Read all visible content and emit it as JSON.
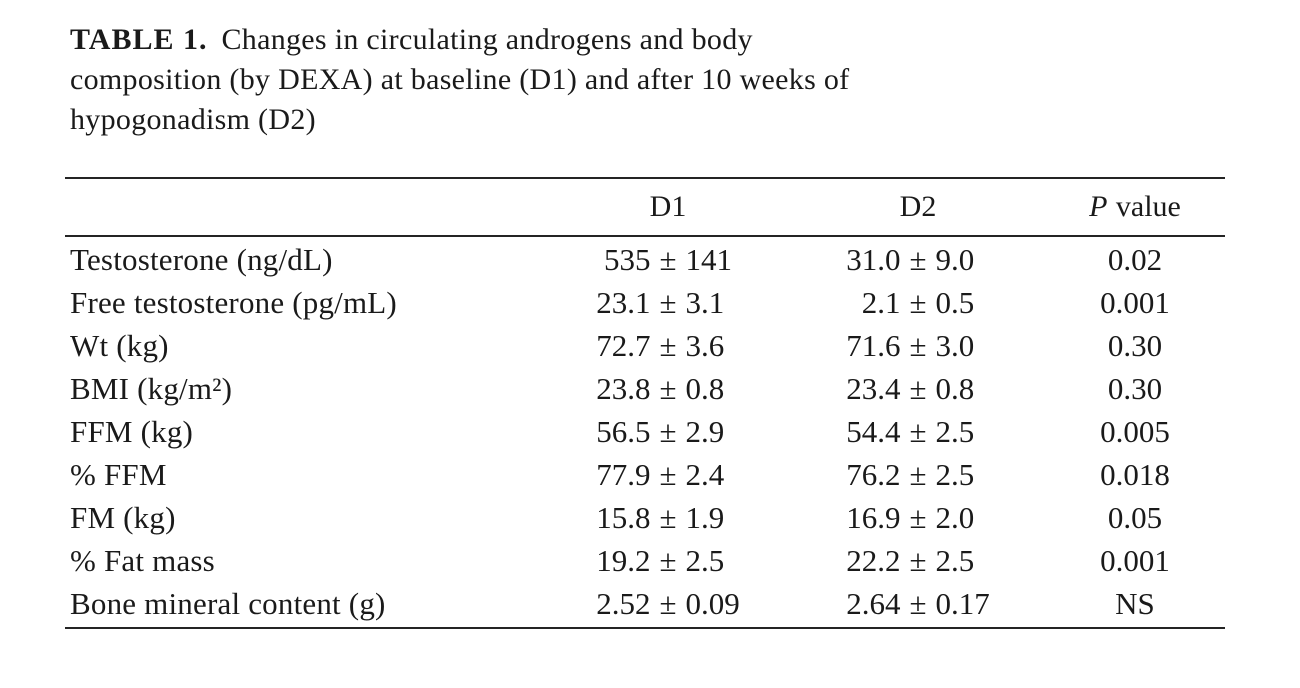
{
  "title": {
    "label": "TABLE 1.",
    "lines": [
      "Changes in circulating androgens and body",
      "composition (by DEXA) at baseline (D1) and after 10 weeks of",
      "hypogonadism (D2)"
    ]
  },
  "table": {
    "plus_minus": "±",
    "columns": {
      "d1": "D1",
      "d2": "D2",
      "p_italic": "P",
      "p_rest": "value"
    },
    "rows": [
      {
        "label": "Testosterone (ng/dL)",
        "d1_mean": "535",
        "d1_sd": "141",
        "d2_mean": "31.0",
        "d2_sd": "9.0",
        "p": "0.02"
      },
      {
        "label": "Free testosterone (pg/mL)",
        "d1_mean": "23.1",
        "d1_sd": "3.1",
        "d2_mean": "2.1",
        "d2_sd": "0.5",
        "p": "0.001"
      },
      {
        "label": "Wt (kg)",
        "d1_mean": "72.7",
        "d1_sd": "3.6",
        "d2_mean": "71.6",
        "d2_sd": "3.0",
        "p": "0.30"
      },
      {
        "label": "BMI (kg/m²)",
        "d1_mean": "23.8",
        "d1_sd": "0.8",
        "d2_mean": "23.4",
        "d2_sd": "0.8",
        "p": "0.30"
      },
      {
        "label": "FFM (kg)",
        "d1_mean": "56.5",
        "d1_sd": "2.9",
        "d2_mean": "54.4",
        "d2_sd": "2.5",
        "p": "0.005"
      },
      {
        "label": "% FFM",
        "d1_mean": "77.9",
        "d1_sd": "2.4",
        "d2_mean": "76.2",
        "d2_sd": "2.5",
        "p": "0.018"
      },
      {
        "label": "FM (kg)",
        "d1_mean": "15.8",
        "d1_sd": "1.9",
        "d2_mean": "16.9",
        "d2_sd": "2.0",
        "p": "0.05"
      },
      {
        "label": "% Fat mass",
        "d1_mean": "19.2",
        "d1_sd": "2.5",
        "d2_mean": "22.2",
        "d2_sd": "2.5",
        "p": "0.001"
      },
      {
        "label": "Bone mineral content (g)",
        "d1_mean": "2.52",
        "d1_sd": "0.09",
        "d2_mean": "2.64",
        "d2_sd": "0.17",
        "p": "NS"
      }
    ]
  },
  "colors": {
    "text": "#1a1a1a",
    "rule": "#242424",
    "background": "#ffffff"
  }
}
